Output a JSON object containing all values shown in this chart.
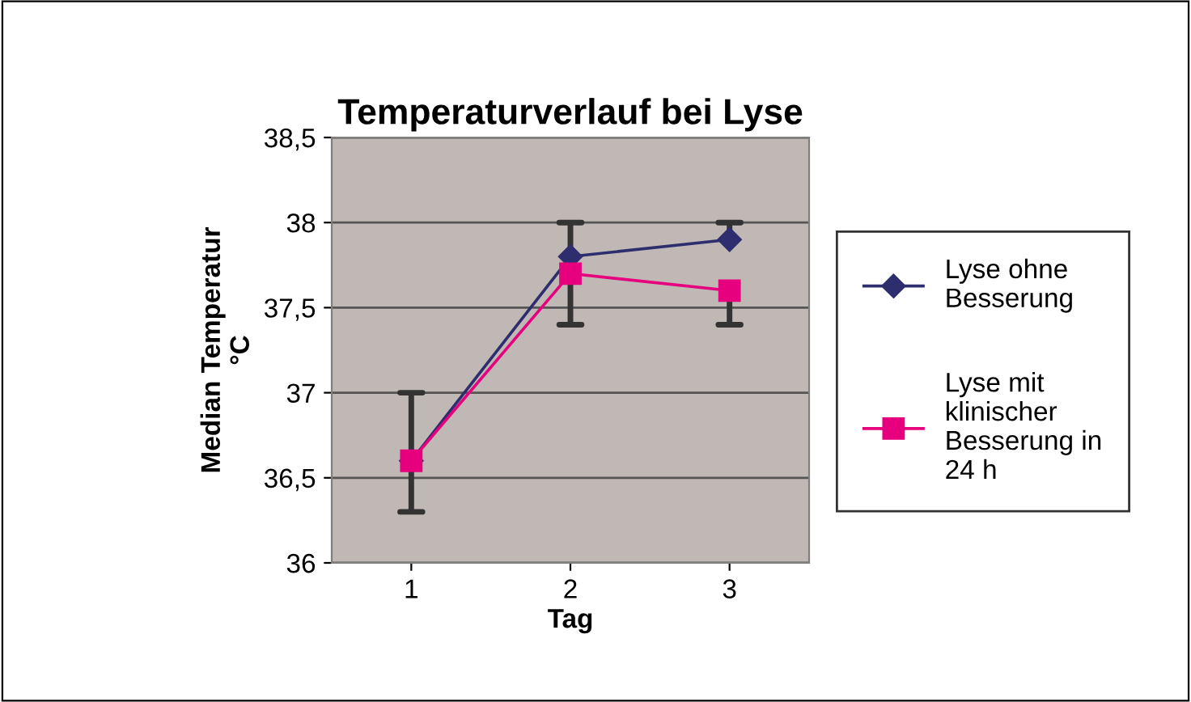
{
  "chart_data": {
    "type": "line",
    "title": "Temperaturverlauf bei Lyse",
    "xlabel": "Tag",
    "ylabel": "Median Temperatur °C",
    "categories": [
      "1",
      "2",
      "3"
    ],
    "series": [
      {
        "name": "Lyse ohne Besserung",
        "color": "#2e2e6e",
        "marker": "diamond",
        "values": [
          36.6,
          37.8,
          37.9
        ],
        "errors": [
          null,
          [
            37.8,
            38.0
          ],
          [
            37.9,
            38.0
          ]
        ]
      },
      {
        "name": "Lyse mit klinischer Besserung in 24 h",
        "color": "#e6007e",
        "marker": "square",
        "values": [
          36.6,
          37.7,
          37.6
        ],
        "errors": [
          [
            36.3,
            37.0
          ],
          [
            37.4,
            37.7
          ],
          [
            37.4,
            37.6
          ]
        ]
      }
    ],
    "ylim": [
      36,
      38.5
    ],
    "yticks": [
      36,
      {
        "value": 36.5,
        "label": "36,5"
      },
      37,
      {
        "value": 37.5,
        "label": "37,5"
      },
      38,
      {
        "value": 38.5,
        "label": "38,5"
      }
    ],
    "grid": "y",
    "legend": "right"
  }
}
